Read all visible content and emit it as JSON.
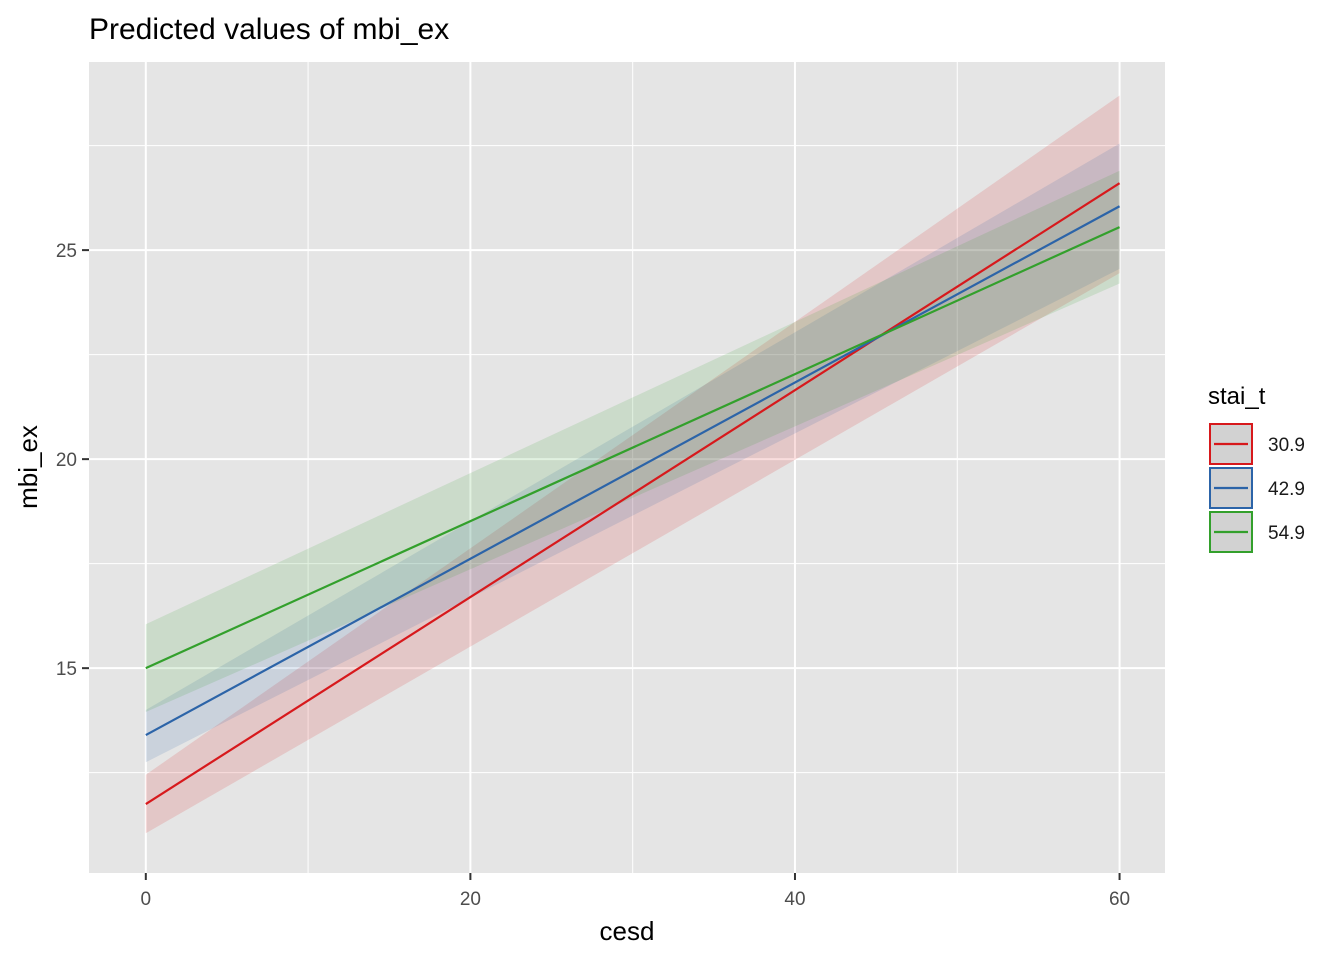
{
  "chart_data": {
    "type": "line",
    "title": "Predicted values of mbi_ex",
    "xlabel": "cesd",
    "ylabel": "mbi_ex",
    "xlim": [
      -3.5,
      62.8
    ],
    "ylim": [
      10.1,
      29.5
    ],
    "x_major_ticks": [
      0,
      20,
      40,
      60
    ],
    "x_minor_ticks": [
      10,
      30,
      50
    ],
    "y_major_ticks": [
      15,
      20,
      25
    ],
    "y_minor_ticks": [
      12.5,
      17.5,
      22.5,
      27.5
    ],
    "x_tick_labels": [
      "0",
      "20",
      "40",
      "60"
    ],
    "y_tick_labels": [
      "15",
      "20",
      "25"
    ],
    "grid": true,
    "legend": {
      "title": "stai_t",
      "position": "right"
    },
    "series": [
      {
        "name": "30.9",
        "color": "#d7191c",
        "x": [
          0,
          60
        ],
        "y": [
          11.75,
          26.6
        ],
        "ci_lower": [
          11.05,
          24.45
        ],
        "ci_upper": [
          12.45,
          28.7
        ]
      },
      {
        "name": "42.9",
        "color": "#2c64a8",
        "x": [
          0,
          60
        ],
        "y": [
          13.4,
          26.05
        ],
        "ci_lower": [
          12.75,
          24.55
        ],
        "ci_upper": [
          14.0,
          27.55
        ]
      },
      {
        "name": "54.9",
        "color": "#33a02c",
        "x": [
          0,
          60
        ],
        "y": [
          15.0,
          25.55
        ],
        "ci_lower": [
          13.95,
          24.2
        ],
        "ci_upper": [
          16.05,
          26.9
        ]
      }
    ]
  }
}
